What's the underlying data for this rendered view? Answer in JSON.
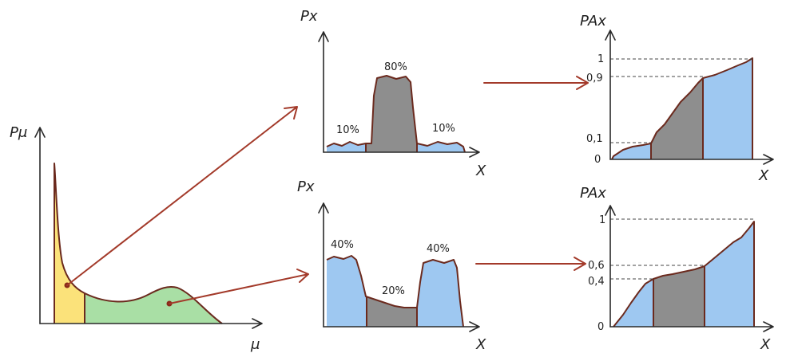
{
  "colors": {
    "yellow_fill": "#fbe27a",
    "green_fill": "#a9dfa5",
    "blue_fill": "#9ec8f1",
    "gray_fill": "#8e8e8e",
    "outline": "#6b2a1e",
    "arrow": "#a33a2a"
  },
  "left": {
    "y_axis_label": "Pμ",
    "x_axis_label": "μ"
  },
  "top_histogram": {
    "y_axis_label": "Px",
    "x_axis_label": "X",
    "left_pct": "10%",
    "mid_pct": "80%",
    "right_pct": "10%"
  },
  "bottom_histogram": {
    "y_axis_label": "Px",
    "x_axis_label": "X",
    "left_pct": "40%",
    "mid_pct": "20%",
    "right_pct": "40%"
  },
  "top_cdf": {
    "y_axis_label": "PAx",
    "x_axis_label": "X",
    "tick_1": "1",
    "tick_09": "0,9",
    "tick_01": "0,1",
    "tick_0": "0"
  },
  "bottom_cdf": {
    "y_axis_label": "PAx",
    "x_axis_label": "X",
    "tick_1": "1",
    "tick_06": "0,6",
    "tick_04": "0,4",
    "tick_0": "0"
  }
}
